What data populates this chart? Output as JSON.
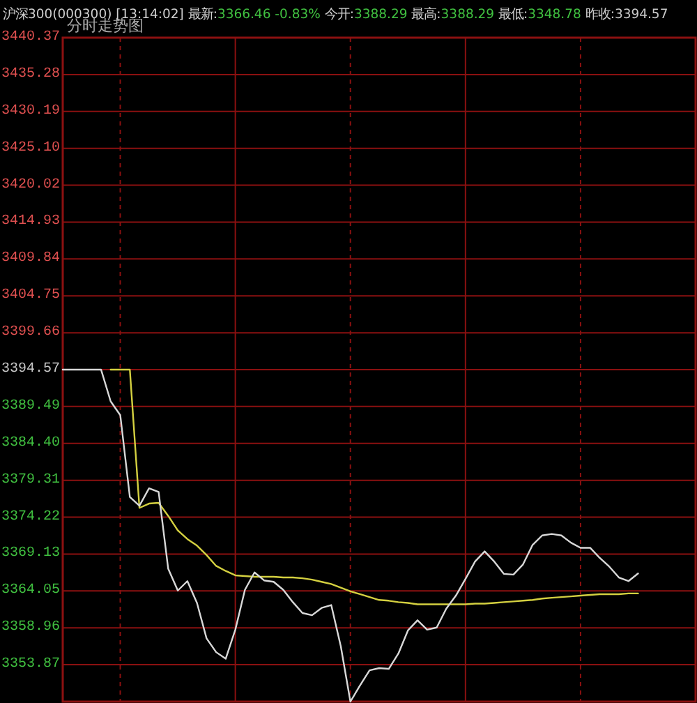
{
  "chart_data": {
    "type": "line",
    "title": "沪深300(000300)  [13:14:02] 最新:3366.46 -0.83% 今开:3388.29 最高:3388.29 最低:3348.78 昨收:3394.57",
    "subtitle": "分时走势图",
    "categories": [
      null,
      null,
      null,
      null,
      null,
      null,
      null,
      null,
      null,
      null,
      null,
      null,
      null,
      null,
      null,
      null,
      null,
      null,
      null,
      null,
      null,
      null,
      null,
      null,
      null,
      null,
      null,
      null,
      null,
      null,
      null,
      null,
      null,
      null,
      null,
      null,
      null,
      null,
      null,
      null,
      null,
      null,
      null,
      null,
      null,
      null,
      null,
      null,
      null,
      null,
      null,
      null,
      null,
      null,
      null,
      null,
      null,
      null,
      null,
      null,
      null,
      null,
      null,
      null,
      null,
      null,
      null
    ],
    "ylim": [
      3348.78,
      3440.37
    ],
    "yticks": [
      3440.37,
      3435.28,
      3430.19,
      {
        "value": 3425.1,
        "label": "3425.10"
      },
      3420.02,
      3414.93,
      3409.84,
      3404.75,
      3399.66,
      3394.57,
      3389.49,
      {
        "value": 3384.4,
        "label": "3384.40"
      },
      3379.31,
      3374.22,
      3369.13,
      3364.05,
      3358.96,
      3353.87
    ],
    "grid": true,
    "series": [
      {
        "color": "#d8d8d8",
        "values": [
          3394.57,
          3394.57,
          3394.57,
          3394.57,
          3394.57,
          3390.2,
          3388.3,
          3377.0,
          3375.8,
          3378.2,
          3377.7,
          3367.1,
          3364.1,
          3365.4,
          3362.4,
          3357.5,
          3355.6,
          3354.7,
          3358.7,
          3364.2,
          3366.6,
          3365.5,
          3365.3,
          3364.2,
          3362.5,
          3361.0,
          3360.7,
          3361.7,
          3362.1,
          3356.4,
          3348.78,
          3351.0,
          3353.1,
          3353.4,
          3353.3,
          3355.4,
          3358.6,
          3360.0,
          3358.7,
          3359.0,
          3361.6,
          3363.4,
          3365.7,
          3368.1,
          3369.5,
          3368.1,
          3366.4,
          3366.3,
          3367.7,
          3370.4,
          3371.7,
          3371.9,
          3371.7,
          3370.7,
          3370.0,
          3370.0,
          3368.6,
          3367.4,
          3365.9,
          3365.4,
          3366.46,
          null,
          null,
          null,
          null,
          null,
          null
        ]
      },
      {
        "color": "#d4d040",
        "values": [
          null,
          null,
          null,
          null,
          null,
          3394.57,
          3394.57,
          3394.57,
          3375.5,
          3376.1,
          3376.2,
          3374.4,
          3372.4,
          3371.2,
          3370.3,
          3369.0,
          3367.5,
          3366.8,
          3366.2,
          3366.1,
          3366.0,
          3366.0,
          3366.0,
          3365.9,
          3365.9,
          3365.8,
          3365.6,
          3365.3,
          3365.0,
          3364.5,
          3364.0,
          3363.6,
          3363.2,
          3362.8,
          3362.7,
          3362.5,
          3362.4,
          3362.2,
          3362.2,
          3362.2,
          3362.2,
          3362.2,
          3362.2,
          3362.3,
          3362.3,
          3362.4,
          3362.5,
          3362.6,
          3362.7,
          3362.8,
          3363.0,
          3363.1,
          3363.2,
          3363.3,
          3363.4,
          3363.5,
          3363.6,
          3363.6,
          3363.6,
          3363.7,
          3363.7,
          null,
          null,
          null,
          null,
          null,
          null
        ]
      }
    ]
  }
}
